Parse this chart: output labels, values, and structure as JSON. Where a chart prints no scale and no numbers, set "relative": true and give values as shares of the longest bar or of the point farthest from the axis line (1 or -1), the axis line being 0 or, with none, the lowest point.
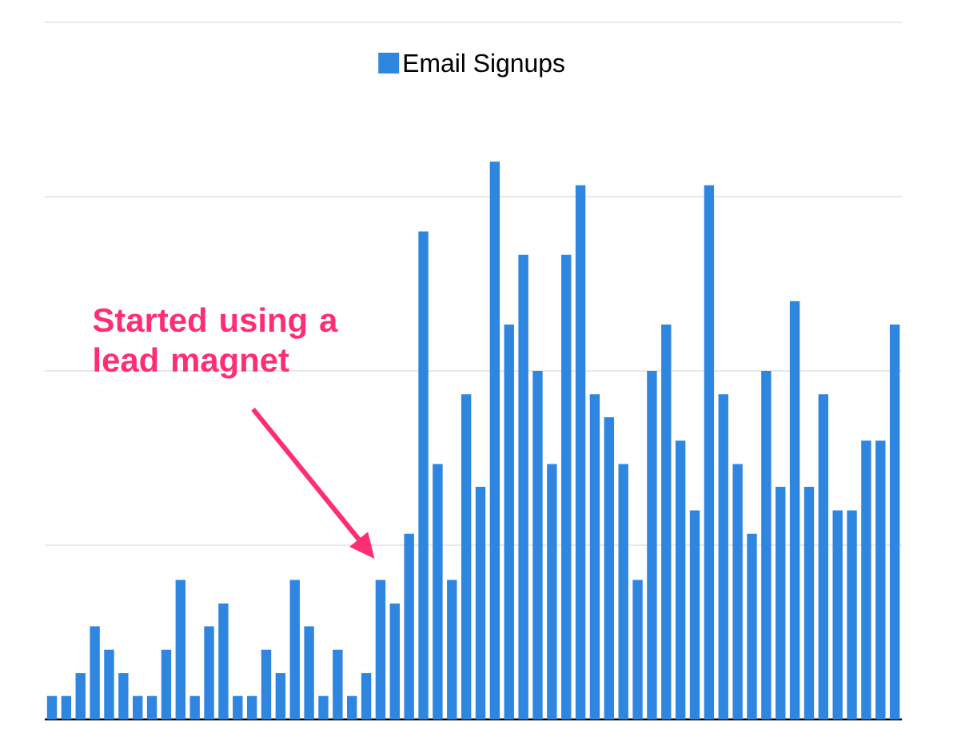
{
  "chart_data": {
    "type": "bar",
    "relative": true,
    "grid": "y",
    "legend": "top",
    "categories": [
      null,
      null,
      null,
      null,
      null,
      null,
      null,
      null,
      null,
      null,
      null,
      null,
      null,
      null,
      null,
      null,
      null,
      null,
      null,
      null,
      null,
      null,
      null,
      null,
      null,
      null,
      null,
      null,
      null,
      null,
      null,
      null,
      null,
      null,
      null,
      null,
      null,
      null,
      null,
      null,
      null,
      null,
      null,
      null,
      null,
      null,
      null,
      null,
      null,
      null,
      null,
      null,
      null,
      null,
      null,
      null,
      null,
      null,
      null,
      null
    ],
    "series": [
      {
        "name": "Email Signups",
        "color": "#2f86e0",
        "values": [
          0.042,
          0.042,
          0.083,
          0.167,
          0.125,
          0.083,
          0.042,
          0.042,
          0.125,
          0.25,
          0.042,
          0.167,
          0.208,
          0.042,
          0.042,
          0.125,
          0.083,
          0.25,
          0.167,
          0.042,
          0.125,
          0.042,
          0.083,
          0.25,
          0.208,
          0.333,
          0.875,
          0.458,
          0.25,
          0.583,
          0.417,
          1,
          0.708,
          0.833,
          0.625,
          0.458,
          0.833,
          0.958,
          0.583,
          0.542,
          0.458,
          0.25,
          0.625,
          0.708,
          0.5,
          0.375,
          0.958,
          0.583,
          0.458,
          0.333,
          0.625,
          0.417,
          0.75,
          0.417,
          0.583,
          0.375,
          0.375,
          0.5,
          0.5,
          0.708
        ]
      }
    ],
    "annotations": [
      "Started using a lead magnet"
    ]
  }
}
